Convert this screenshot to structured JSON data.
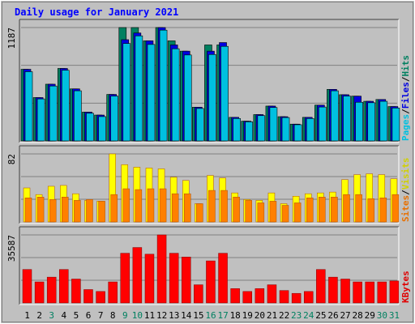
{
  "chart_data": [
    {
      "type": "bar",
      "title": "Daily usage for January 2021",
      "y_max_label": "1187",
      "right_labels": [
        {
          "text": "Pages",
          "color": "#00c0e0"
        },
        {
          "text": "/",
          "color": "#000000"
        },
        {
          "text": "Files",
          "color": "#0000e0"
        },
        {
          "text": "/",
          "color": "#000000"
        },
        {
          "text": "Hits",
          "color": "#008060"
        }
      ],
      "series": [
        {
          "name": "Hits",
          "color": "#008060",
          "values": [
            750,
            454,
            594,
            759,
            545,
            302,
            271,
            487,
            1187,
            1187,
            1048,
            1187,
            1048,
            940,
            353,
            1005,
            1005,
            247,
            207,
            276,
            365,
            254,
            176,
            247,
            375,
            540,
            484,
            469,
            415,
            434,
            360
          ]
        },
        {
          "name": "Files",
          "color": "#0000e0",
          "values": [
            750,
            454,
            594,
            759,
            545,
            302,
            271,
            487,
            1060,
            1130,
            1048,
            1187,
            1005,
            940,
            353,
            940,
            1030,
            247,
            207,
            276,
            365,
            254,
            176,
            247,
            375,
            540,
            484,
            469,
            415,
            434,
            360
          ]
        },
        {
          "name": "Pages",
          "color": "#00c0e0",
          "values": [
            725,
            440,
            575,
            740,
            525,
            290,
            255,
            470,
            1020,
            1100,
            1010,
            1160,
            965,
            900,
            340,
            905,
            990,
            235,
            200,
            265,
            350,
            245,
            170,
            235,
            355,
            525,
            470,
            405,
            400,
            415,
            345
          ]
        }
      ],
      "ylim": [
        0,
        1187
      ],
      "grid": true
    },
    {
      "type": "bar",
      "y_max_label": "82",
      "right_labels": [
        {
          "text": "Sites",
          "color": "#e87000"
        },
        {
          "text": "/",
          "color": "#000000"
        },
        {
          "text": "Visits",
          "color": "#d0d000"
        }
      ],
      "series": [
        {
          "name": "Visits",
          "color": "#ffff00",
          "values": [
            41,
            33,
            43,
            44,
            34,
            26,
            25,
            82,
            69,
            66,
            65,
            64,
            54,
            50,
            22,
            56,
            53,
            35,
            27,
            26,
            35,
            22,
            31,
            34,
            35,
            36,
            51,
            57,
            58,
            57,
            52
          ]
        },
        {
          "name": "Sites",
          "color": "#ff8000",
          "values": [
            29,
            30,
            27,
            30,
            26,
            27,
            25,
            33,
            40,
            39,
            40,
            40,
            34,
            34,
            22,
            38,
            38,
            30,
            26,
            23,
            25,
            20,
            23,
            29,
            30,
            30,
            33,
            33,
            28,
            29,
            33
          ]
        }
      ],
      "ylim": [
        0,
        82
      ],
      "grid": true
    },
    {
      "type": "bar",
      "y_max_label": "35587",
      "right_labels": [
        {
          "text": "KBytes",
          "color": "#e00000"
        }
      ],
      "series": [
        {
          "name": "KBytes",
          "color": "#ff0000",
          "values": [
            17500,
            11000,
            13500,
            17500,
            12500,
            7000,
            6000,
            11000,
            26000,
            29000,
            25500,
            35587,
            26000,
            24000,
            9500,
            22000,
            26000,
            7500,
            6000,
            7500,
            9500,
            6500,
            5000,
            6000,
            17500,
            13500,
            12500,
            11000,
            11000,
            11000,
            11500
          ]
        }
      ],
      "ylim": [
        0,
        35587
      ],
      "grid": true
    }
  ],
  "x_labels": [
    "1",
    "2",
    "3",
    "4",
    "5",
    "6",
    "7",
    "8",
    "9",
    "10",
    "11",
    "12",
    "13",
    "14",
    "15",
    "16",
    "17",
    "18",
    "19",
    "20",
    "21",
    "22",
    "23",
    "24",
    "25",
    "26",
    "27",
    "28",
    "29",
    "30",
    "31"
  ],
  "weekend_days": [
    3,
    9,
    10,
    16,
    17,
    23,
    24,
    30,
    31
  ],
  "colors": {
    "background": "#c0c0c0",
    "plot_bg": "#c0c0c0",
    "title": "#0000ff",
    "weekday_label": "#000000",
    "weekend_label": "#008060",
    "grid": "#808080"
  }
}
